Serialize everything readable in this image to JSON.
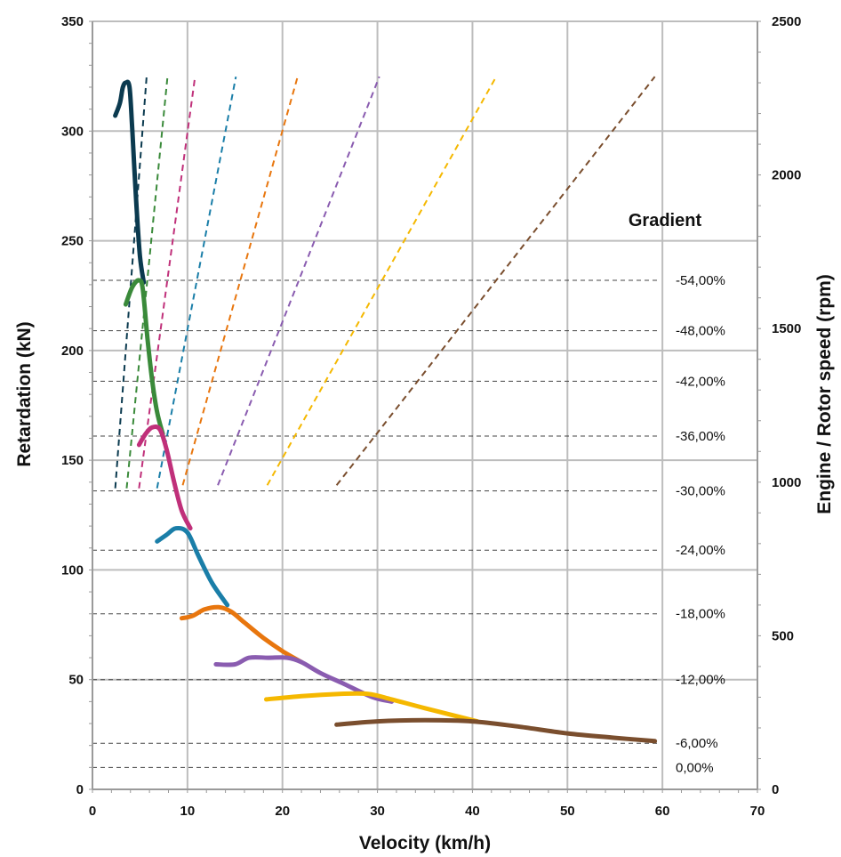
{
  "chart_data": {
    "type": "line",
    "xlabel": "Velocity (km/h)",
    "ylabel": "Retardation (kN)",
    "y2label": "Engine / Rotor speed (rpm)",
    "xlim": [
      0,
      70
    ],
    "ylim": [
      0,
      350
    ],
    "y2lim": [
      0,
      2500
    ],
    "x_ticks": [
      0,
      10,
      20,
      30,
      40,
      50,
      60,
      70
    ],
    "y_ticks": [
      0,
      50,
      100,
      150,
      200,
      250,
      300,
      350
    ],
    "y2_ticks": [
      0,
      500,
      1000,
      1500,
      2000,
      2500
    ],
    "grid": true,
    "legend_title": "Gradient",
    "gradient_lines": [
      {
        "label": "-54,00%",
        "y": 232
      },
      {
        "label": "-48,00%",
        "y": 209
      },
      {
        "label": "-42,00%",
        "y": 186
      },
      {
        "label": "-36,00%",
        "y": 161
      },
      {
        "label": "-30,00%",
        "y": 136
      },
      {
        "label": "-24,00%",
        "y": 109
      },
      {
        "label": "-18,00%",
        "y": 80
      },
      {
        "label": "-12,00%",
        "y": 50
      },
      {
        "label": "-6,00%",
        "y": 21
      },
      {
        "label": "0,00%",
        "y": 10
      }
    ],
    "retardation_series": [
      {
        "color": "#0b3a4f",
        "points": [
          [
            2.4,
            307
          ],
          [
            2.9,
            313
          ],
          [
            3.2,
            320
          ],
          [
            3.5,
            322
          ],
          [
            3.9,
            320
          ],
          [
            4.2,
            300
          ],
          [
            4.6,
            268
          ],
          [
            5.0,
            243
          ],
          [
            5.4,
            231
          ]
        ]
      },
      {
        "color": "#3a8a3a",
        "points": [
          [
            3.5,
            221
          ],
          [
            4.2,
            229
          ],
          [
            4.9,
            232
          ],
          [
            5.3,
            228
          ],
          [
            5.8,
            205
          ],
          [
            6.3,
            186
          ],
          [
            6.8,
            172
          ],
          [
            7.4,
            162
          ]
        ]
      },
      {
        "color": "#c0307a",
        "points": [
          [
            4.9,
            157
          ],
          [
            5.6,
            162
          ],
          [
            6.3,
            165
          ],
          [
            7.1,
            164
          ],
          [
            7.8,
            155
          ],
          [
            8.6,
            140
          ],
          [
            9.4,
            127
          ],
          [
            10.3,
            119
          ]
        ]
      },
      {
        "color": "#1a7ea8",
        "points": [
          [
            6.8,
            113
          ],
          [
            7.8,
            116
          ],
          [
            8.8,
            119
          ],
          [
            10.0,
            117
          ],
          [
            11.2,
            106
          ],
          [
            12.6,
            94
          ],
          [
            14.2,
            84
          ]
        ]
      },
      {
        "color": "#e8760e",
        "points": [
          [
            9.4,
            78
          ],
          [
            10.5,
            79
          ],
          [
            11.8,
            82
          ],
          [
            13.3,
            83
          ],
          [
            14.6,
            81
          ],
          [
            16.0,
            76
          ],
          [
            18.0,
            69
          ],
          [
            20.0,
            63
          ],
          [
            22.0,
            58
          ]
        ]
      },
      {
        "color": "#8a5cb0",
        "points": [
          [
            13.0,
            57
          ],
          [
            15.0,
            57
          ],
          [
            16.5,
            60
          ],
          [
            18.5,
            60
          ],
          [
            20.5,
            60
          ],
          [
            22.0,
            58
          ],
          [
            24.0,
            53
          ],
          [
            26.5,
            48
          ],
          [
            29.5,
            42
          ],
          [
            31.5,
            40
          ]
        ]
      },
      {
        "color": "#f5b800",
        "points": [
          [
            18.3,
            41
          ],
          [
            22.0,
            42.5
          ],
          [
            26.0,
            43.5
          ],
          [
            29.0,
            43.5
          ],
          [
            31.5,
            41
          ],
          [
            35.0,
            37
          ],
          [
            40.5,
            31
          ]
        ]
      },
      {
        "color": "#7a4e2e",
        "points": [
          [
            25.7,
            29.5
          ],
          [
            30.0,
            31
          ],
          [
            35.0,
            31.5
          ],
          [
            40.0,
            31
          ],
          [
            45.0,
            28.5
          ],
          [
            50.0,
            25.5
          ],
          [
            55.0,
            23.5
          ],
          [
            59.2,
            22
          ]
        ]
      }
    ],
    "speed_series": [
      {
        "color": "#0b3a4f",
        "points": [
          [
            2.4,
            980
          ],
          [
            5.7,
            2320
          ]
        ]
      },
      {
        "color": "#3a8a3a",
        "points": [
          [
            3.6,
            980
          ],
          [
            7.9,
            2320
          ]
        ]
      },
      {
        "color": "#c0307a",
        "points": [
          [
            4.9,
            980
          ],
          [
            10.8,
            2320
          ]
        ]
      },
      {
        "color": "#1a7ea8",
        "points": [
          [
            6.8,
            980
          ],
          [
            15.1,
            2320
          ]
        ]
      },
      {
        "color": "#e8760e",
        "points": [
          [
            9.5,
            990
          ],
          [
            21.6,
            2320
          ]
        ]
      },
      {
        "color": "#8a5cb0",
        "points": [
          [
            13.2,
            990
          ],
          [
            30.2,
            2320
          ]
        ]
      },
      {
        "color": "#f5b800",
        "points": [
          [
            18.4,
            990
          ],
          [
            42.5,
            2320
          ]
        ]
      },
      {
        "color": "#7a4e2e",
        "points": [
          [
            25.7,
            990
          ],
          [
            59.2,
            2320
          ]
        ]
      }
    ]
  }
}
